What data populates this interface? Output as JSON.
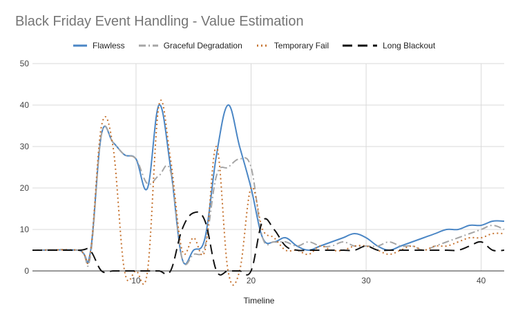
{
  "chart_data": {
    "type": "line",
    "title": "Black Friday Event Handling - Value Estimation",
    "xlabel": "Timeline",
    "ylabel": "",
    "xlim": [
      1,
      42
    ],
    "ylim": [
      0,
      50
    ],
    "xticks": [
      10,
      20,
      30,
      40
    ],
    "yticks": [
      0,
      10,
      20,
      30,
      40,
      50
    ],
    "grid": true,
    "legend_position": "top",
    "series": [
      {
        "name": "Flawless",
        "color": "#4a86c5",
        "style": "solid",
        "x": [
          1,
          5,
          6,
          7,
          8,
          9,
          10,
          11,
          12,
          13,
          14,
          15,
          16,
          17,
          18,
          19,
          20,
          21,
          22,
          23,
          24,
          25,
          26,
          27,
          28,
          29,
          30,
          31,
          32,
          33,
          34,
          35,
          36,
          37,
          38,
          39,
          40,
          41,
          42
        ],
        "values": [
          5,
          5,
          4,
          33,
          31,
          28,
          27,
          20,
          40,
          25,
          3,
          5,
          8,
          28,
          40,
          30,
          20,
          8,
          7,
          8,
          6,
          5,
          6,
          7,
          8,
          9,
          8,
          6,
          5,
          6,
          7,
          8,
          9,
          10,
          10,
          11,
          11,
          12,
          12
        ]
      },
      {
        "name": "Graceful Degradation",
        "color": "#a5a5a5",
        "style": "dashdot",
        "x": [
          1,
          5,
          6,
          7,
          8,
          9,
          10,
          11,
          12,
          13,
          14,
          15,
          16,
          17,
          18,
          19,
          20,
          21,
          22,
          23,
          24,
          25,
          26,
          27,
          28,
          29,
          30,
          31,
          32,
          33,
          34,
          35,
          36,
          37,
          38,
          39,
          40,
          41,
          42
        ],
        "values": [
          5,
          5,
          3,
          33,
          31,
          28,
          27,
          21,
          23,
          24,
          3,
          4,
          6,
          23,
          25,
          27,
          25,
          8,
          7,
          7,
          6,
          7,
          6,
          6,
          7,
          6,
          6,
          6,
          7,
          6,
          6,
          5,
          6,
          7,
          8,
          9,
          10,
          11,
          10
        ]
      },
      {
        "name": "Temporary Fail",
        "color": "#c5712d",
        "style": "dotted",
        "x": [
          1,
          5,
          6,
          7,
          8,
          9,
          10,
          11,
          12,
          13,
          14,
          15,
          16,
          17,
          18,
          19,
          20,
          21,
          22,
          23,
          24,
          25,
          26,
          27,
          28,
          29,
          30,
          31,
          32,
          33,
          34,
          35,
          36,
          37,
          38,
          39,
          40,
          41,
          42
        ],
        "values": [
          5,
          5,
          4,
          35,
          30,
          0,
          0,
          0,
          40,
          27,
          5,
          8,
          5,
          30,
          0,
          0,
          20,
          10,
          8,
          5,
          5,
          4,
          6,
          5,
          5,
          6,
          6,
          5,
          4,
          5,
          6,
          5,
          6,
          6,
          7,
          8,
          8,
          9,
          9
        ]
      },
      {
        "name": "Long Blackout",
        "color": "#111111",
        "style": "longdash",
        "x": [
          1,
          5,
          6,
          7,
          8,
          9,
          10,
          11,
          12,
          13,
          14,
          15,
          16,
          17,
          18,
          19,
          20,
          21,
          22,
          23,
          24,
          25,
          26,
          27,
          28,
          29,
          30,
          31,
          32,
          33,
          34,
          35,
          36,
          37,
          38,
          39,
          40,
          41,
          42
        ],
        "values": [
          5,
          5,
          5,
          0,
          0,
          0,
          0,
          0,
          0,
          0,
          10,
          14,
          12,
          0,
          0,
          0,
          0,
          12,
          10,
          6,
          5,
          5,
          5,
          5,
          5,
          5,
          6,
          5,
          5,
          5,
          5,
          5,
          5,
          5,
          5,
          6,
          7,
          5,
          5
        ]
      }
    ]
  }
}
